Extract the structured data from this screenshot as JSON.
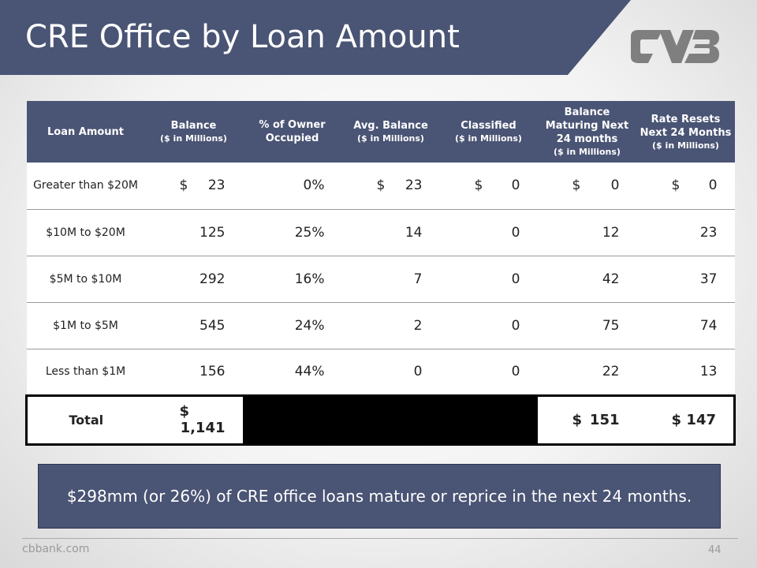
{
  "slide": {
    "title": "CRE Office by Loan Amount",
    "callout": "$298mm (or 26%) of CRE office loans mature or reprice in the next 24 months.",
    "footer_site": "cbbank.com",
    "page_number": "44"
  },
  "logo": {
    "icon": "cvb-logo",
    "color": "#7f7f7f"
  },
  "colors": {
    "header_bg": "#4a5474",
    "text_on_dark": "#ffffff"
  },
  "table": {
    "headers": [
      {
        "main": "Loan Amount",
        "sub": ""
      },
      {
        "main": "Balance",
        "sub": "($ in Millions)"
      },
      {
        "main": "% of Owner Occupied",
        "sub": ""
      },
      {
        "main": "Avg. Balance",
        "sub": "($ in Millions)"
      },
      {
        "main": "Classified",
        "sub": "($ in Millions)"
      },
      {
        "main": "Balance Maturing Next 24 months",
        "sub": "($ in Millions)"
      },
      {
        "main": "Rate Resets Next 24 Months",
        "sub": "($ in Millions)"
      }
    ],
    "rows": [
      {
        "label": "Greater than $20M",
        "balance_cur": "$",
        "balance": "23",
        "owner_occupied": "0%",
        "avg_cur": "$",
        "avg_balance": "23",
        "classified_cur": "$",
        "classified": "0",
        "maturing_cur": "$",
        "maturing": "0",
        "resets_cur": "$",
        "resets": "0"
      },
      {
        "label": "$10M to $20M",
        "balance_cur": "",
        "balance": "125",
        "owner_occupied": "25%",
        "avg_cur": "",
        "avg_balance": "14",
        "classified_cur": "",
        "classified": "0",
        "maturing_cur": "",
        "maturing": "12",
        "resets_cur": "",
        "resets": "23"
      },
      {
        "label": "$5M to $10M",
        "balance_cur": "",
        "balance": "292",
        "owner_occupied": "16%",
        "avg_cur": "",
        "avg_balance": "7",
        "classified_cur": "",
        "classified": "0",
        "maturing_cur": "",
        "maturing": "42",
        "resets_cur": "",
        "resets": "37"
      },
      {
        "label": "$1M to $5M",
        "balance_cur": "",
        "balance": "545",
        "owner_occupied": "24%",
        "avg_cur": "",
        "avg_balance": "2",
        "classified_cur": "",
        "classified": "0",
        "maturing_cur": "",
        "maturing": "75",
        "resets_cur": "",
        "resets": "74"
      },
      {
        "label": "Less than $1M",
        "balance_cur": "",
        "balance": "156",
        "owner_occupied": "44%",
        "avg_cur": "",
        "avg_balance": "0",
        "classified_cur": "",
        "classified": "0",
        "maturing_cur": "",
        "maturing": "22",
        "resets_cur": "",
        "resets": "13"
      }
    ],
    "total": {
      "label": "Total",
      "balance_cur": "$",
      "balance": "1,141",
      "maturing_cur": "$",
      "maturing": "151",
      "resets_cur": "$",
      "resets": "147"
    }
  }
}
